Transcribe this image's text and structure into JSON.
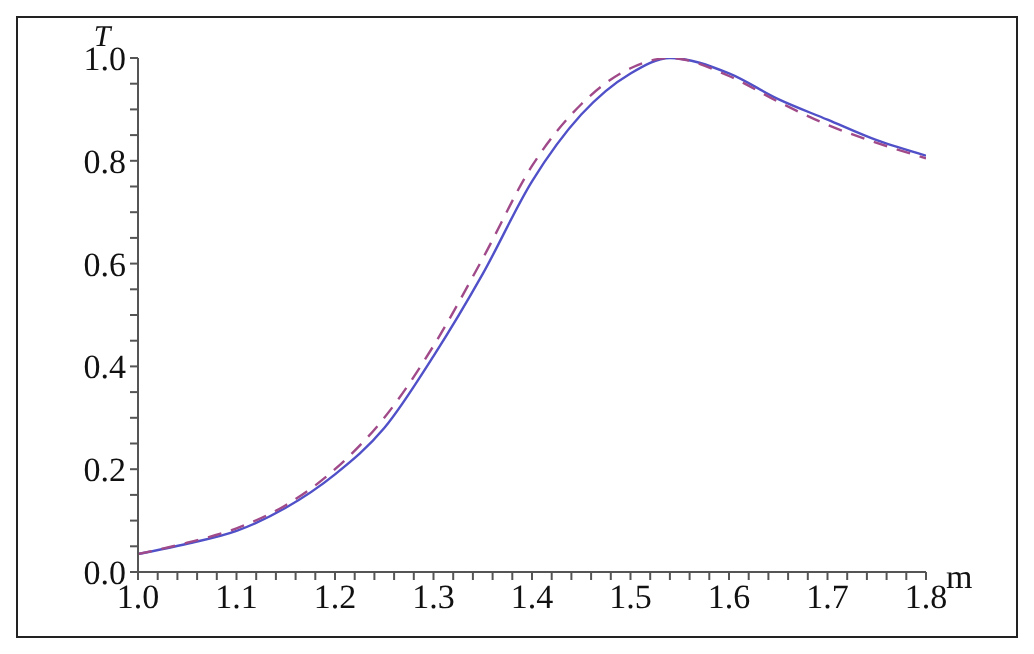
{
  "chart_data": {
    "type": "line",
    "xlabel": "m",
    "ylabel": "T",
    "x": [
      1.0,
      1.05,
      1.1,
      1.15,
      1.2,
      1.25,
      1.3,
      1.35,
      1.4,
      1.45,
      1.5,
      1.54,
      1.6,
      1.65,
      1.7,
      1.75,
      1.8
    ],
    "series": [
      {
        "color": "#5050c8",
        "line_style": "solid",
        "values": [
          0.035,
          0.055,
          0.08,
          0.125,
          0.19,
          0.28,
          0.42,
          0.58,
          0.76,
          0.89,
          0.97,
          1.0,
          0.97,
          0.92,
          0.88,
          0.84,
          0.81
        ]
      },
      {
        "color": "#a04a8a",
        "line_style": "dashed",
        "values": [
          0.035,
          0.057,
          0.085,
          0.13,
          0.2,
          0.3,
          0.44,
          0.61,
          0.79,
          0.91,
          0.98,
          1.0,
          0.965,
          0.915,
          0.87,
          0.835,
          0.805
        ]
      }
    ],
    "xlim": [
      1.0,
      1.8
    ],
    "ylim": [
      0,
      1.0
    ],
    "xticks": [
      "1.0",
      {
        "value": 1.02,
        "label": null
      },
      {
        "value": 1.04,
        "label": null
      },
      {
        "value": 1.06,
        "label": null
      },
      {
        "value": 1.08,
        "label": null
      },
      {
        "value": 1.1,
        "label": "1.1"
      },
      {
        "value": 1.12,
        "label": null
      },
      {
        "value": 1.14,
        "label": null
      },
      {
        "value": 1.16,
        "label": null
      },
      {
        "value": 1.18,
        "label": null
      },
      {
        "value": 1.2,
        "label": "1.2"
      },
      {
        "value": 1.22,
        "label": null
      },
      {
        "value": 1.24,
        "label": null
      },
      {
        "value": 1.26,
        "label": null
      },
      {
        "value": 1.28,
        "label": null
      },
      {
        "value": 1.3,
        "label": "1.3"
      },
      {
        "value": 1.32,
        "label": null
      },
      {
        "value": 1.34,
        "label": null
      },
      {
        "value": 1.36,
        "label": null
      },
      {
        "value": 1.38,
        "label": null
      },
      {
        "value": 1.4,
        "label": "1.4"
      },
      {
        "value": 1.42,
        "label": null
      },
      {
        "value": 1.44,
        "label": null
      },
      {
        "value": 1.46,
        "label": null
      },
      {
        "value": 1.48,
        "label": null
      },
      {
        "value": 1.5,
        "label": "1.5"
      },
      {
        "value": 1.52,
        "label": null
      },
      {
        "value": 1.54,
        "label": null
      },
      {
        "value": 1.56,
        "label": null
      },
      {
        "value": 1.58,
        "label": null
      },
      {
        "value": 1.6,
        "label": "1.6"
      },
      {
        "value": 1.62,
        "label": null
      },
      {
        "value": 1.64,
        "label": null
      },
      {
        "value": 1.66,
        "label": null
      },
      {
        "value": 1.68,
        "label": null
      },
      {
        "value": 1.7,
        "label": "1.7"
      },
      {
        "value": 1.72,
        "label": null
      },
      {
        "value": 1.74,
        "label": null
      },
      {
        "value": 1.76,
        "label": null
      },
      {
        "value": 1.78,
        "label": null
      },
      {
        "value": 1.8,
        "label": "1.8"
      }
    ],
    "yticks": [
      {
        "value": 0,
        "label": "0.0"
      },
      {
        "value": 0.05,
        "label": null
      },
      {
        "value": 0.1,
        "label": null
      },
      {
        "value": 0.15,
        "label": null
      },
      {
        "value": 0.2,
        "label": "0.2"
      },
      {
        "value": 0.25,
        "label": null
      },
      {
        "value": 0.3,
        "label": null
      },
      {
        "value": 0.35,
        "label": null
      },
      {
        "value": 0.4,
        "label": "0.4"
      },
      {
        "value": 0.45,
        "label": null
      },
      {
        "value": 0.5,
        "label": null
      },
      {
        "value": 0.55,
        "label": null
      },
      {
        "value": 0.6,
        "label": "0.6"
      },
      {
        "value": 0.65,
        "label": null
      },
      {
        "value": 0.7,
        "label": null
      },
      {
        "value": 0.75,
        "label": null
      },
      {
        "value": 0.8,
        "label": "0.8"
      },
      {
        "value": 0.85,
        "label": null
      },
      {
        "value": 0.9,
        "label": null
      },
      {
        "value": 0.95,
        "label": null
      },
      {
        "value": 1.0,
        "label": "1.0"
      }
    ],
    "grid": false,
    "legend": false,
    "marker": "none"
  }
}
